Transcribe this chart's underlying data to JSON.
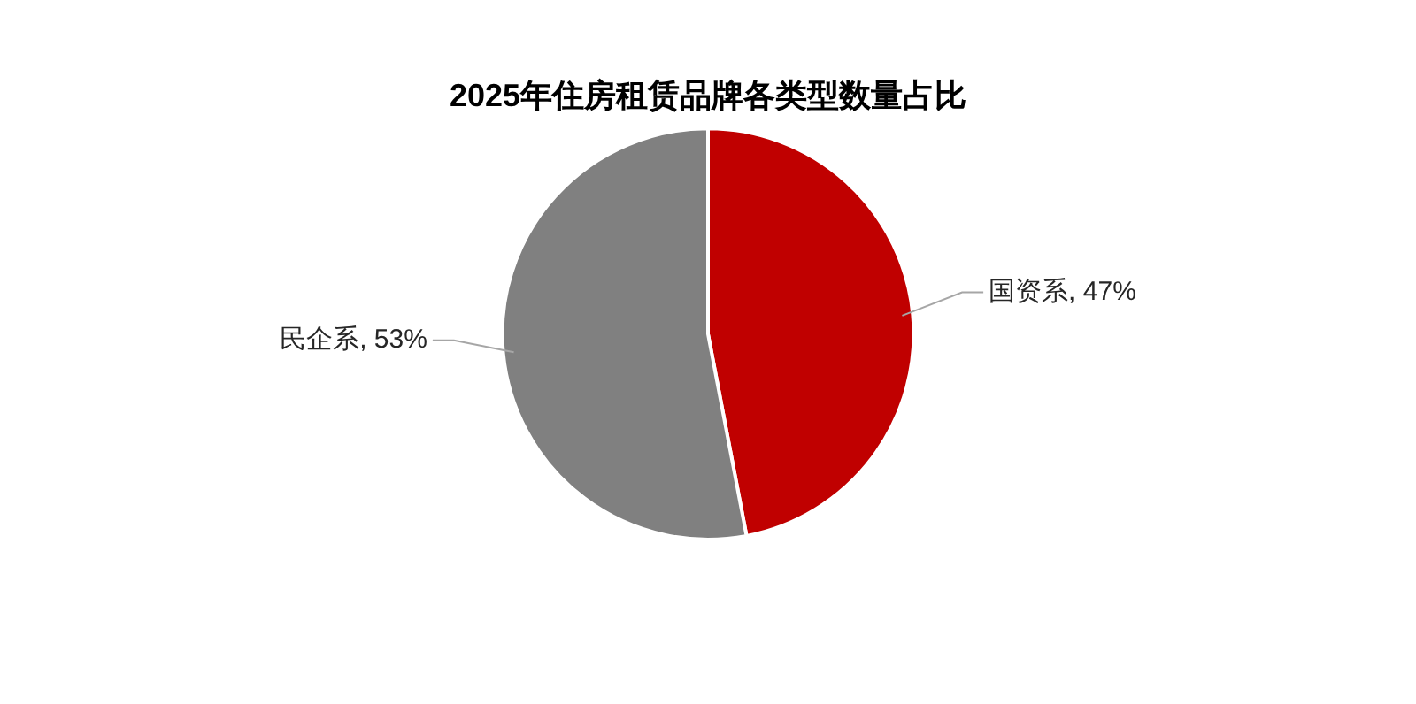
{
  "chart_data": {
    "type": "pie",
    "title": "2025年住房租赁品牌各类型数量占比",
    "categories": [
      "国资系",
      "民企系"
    ],
    "values": [
      47,
      53
    ],
    "colors": [
      "#c00000",
      "#808080"
    ],
    "value_labels": [
      ", 47%",
      ", 53%"
    ],
    "legend": false
  }
}
